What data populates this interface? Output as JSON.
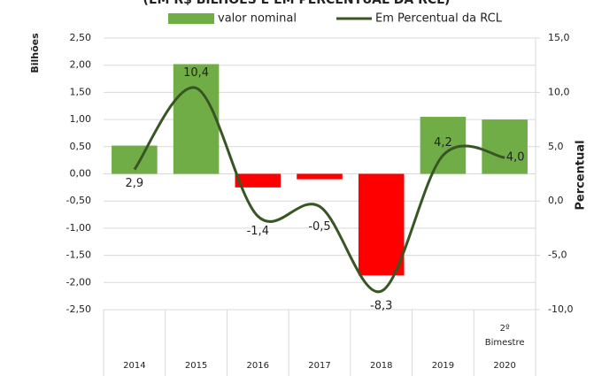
{
  "chart_data": {
    "type": "bar-line",
    "title": "(EM R$ BILHÕES E EM PERCENTUAL DA RCL)",
    "ylabel": "Bilhões",
    "y2label": "Percentual",
    "categories": [
      "2014",
      "2015",
      "2016",
      "2017",
      "2018",
      "2019",
      "2020"
    ],
    "category_annotation": [
      "2º",
      "Bimestre"
    ],
    "legend": "top",
    "series": [
      {
        "name": "valor nominal",
        "color": "#70ad47",
        "negative_color": "#ff0000",
        "values": [
          0.52,
          2.02,
          -0.25,
          -0.1,
          -1.87,
          1.05,
          1.0
        ]
      },
      {
        "name": "Em Percentual da RCL",
        "color": "#375623",
        "axis": "y2",
        "values": [
          2.9,
          10.4,
          -1.4,
          -0.5,
          -8.3,
          4.2,
          4.0
        ],
        "value_labels": [
          "2,9",
          "10,4",
          "-1,4",
          "-0,5",
          "-8,3",
          "4,2",
          "4,0"
        ]
      }
    ],
    "ylim": [
      -2.5,
      2.5
    ],
    "yticks": [
      {
        "value": -2.5,
        "label": "-2,50"
      },
      {
        "value": -2,
        "label": "-2,00"
      },
      {
        "value": -1.5,
        "label": "-1,50"
      },
      {
        "value": -1,
        "label": "-1,00"
      },
      {
        "value": -0.5,
        "label": "-0,50"
      },
      {
        "value": 0,
        "label": "0,00"
      },
      {
        "value": 0.5,
        "label": "0,50"
      },
      {
        "value": 1,
        "label": "1,00"
      },
      {
        "value": 1.5,
        "label": "1,50"
      },
      {
        "value": 2,
        "label": "2,00"
      },
      {
        "value": 2.5,
        "label": "2,50"
      }
    ],
    "y2lim": [
      -10,
      15
    ],
    "y2ticks": [
      {
        "value": -10,
        "label": "-10,0"
      },
      {
        "value": -5,
        "label": "-5,0"
      },
      {
        "value": 0,
        "label": "0,0"
      },
      {
        "value": 5,
        "label": "5,0"
      },
      {
        "value": 10,
        "label": "10,0"
      },
      {
        "value": 15,
        "label": "15,0"
      }
    ],
    "grid": true
  }
}
